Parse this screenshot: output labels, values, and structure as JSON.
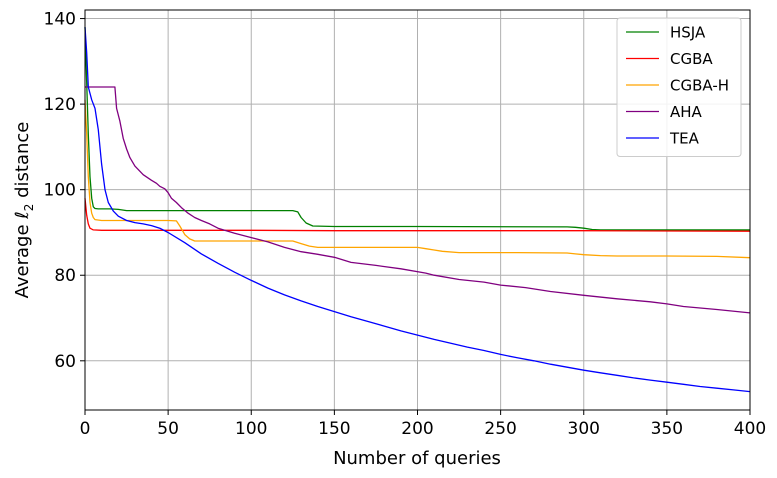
{
  "chart_data": {
    "type": "line",
    "title": "",
    "xlabel": "Number of queries",
    "ylabel_prefix": "Average ",
    "ylabel_symbol": "ℓ",
    "ylabel_subscript": "2",
    "ylabel_suffix": " distance",
    "xlim": [
      0,
      400
    ],
    "ylim": [
      48.5,
      142
    ],
    "xticks": [
      "0",
      "50",
      "100",
      "150",
      "200",
      "250",
      "300",
      "350",
      "400"
    ],
    "yticks": [
      "60",
      "80",
      "100",
      "120",
      "140"
    ],
    "grid": true,
    "legend_position": "top-right",
    "series": [
      {
        "name": "HSJA",
        "color": "#008000",
        "points": [
          [
            0,
            138
          ],
          [
            1,
            125
          ],
          [
            2,
            113
          ],
          [
            3,
            103
          ],
          [
            4,
            98
          ],
          [
            5,
            96
          ],
          [
            6,
            95.6
          ],
          [
            8,
            95.5
          ],
          [
            15,
            95.5
          ],
          [
            20,
            95.4
          ],
          [
            25,
            95.1
          ],
          [
            60,
            95.1
          ],
          [
            100,
            95.1
          ],
          [
            125,
            95.1
          ],
          [
            128,
            94.8
          ],
          [
            130,
            93.5
          ],
          [
            133,
            92.2
          ],
          [
            137,
            91.5
          ],
          [
            150,
            91.4
          ],
          [
            200,
            91.4
          ],
          [
            290,
            91.3
          ],
          [
            295,
            91.2
          ],
          [
            300,
            91.0
          ],
          [
            305,
            90.7
          ],
          [
            310,
            90.6
          ],
          [
            350,
            90.6
          ],
          [
            400,
            90.6
          ]
        ]
      },
      {
        "name": "CGBA",
        "color": "#ff0000",
        "points": [
          [
            0,
            98
          ],
          [
            1,
            94
          ],
          [
            2,
            92
          ],
          [
            3,
            91
          ],
          [
            5,
            90.6
          ],
          [
            10,
            90.5
          ],
          [
            50,
            90.5
          ],
          [
            100,
            90.5
          ],
          [
            150,
            90.4
          ],
          [
            200,
            90.4
          ],
          [
            300,
            90.4
          ],
          [
            400,
            90.3
          ]
        ]
      },
      {
        "name": "CGBA-H",
        "color": "#ffa500",
        "points": [
          [
            0,
            121
          ],
          [
            1,
            113
          ],
          [
            2,
            103
          ],
          [
            3,
            97
          ],
          [
            4,
            94.5
          ],
          [
            5,
            93.5
          ],
          [
            6,
            93.0
          ],
          [
            10,
            92.8
          ],
          [
            20,
            92.8
          ],
          [
            50,
            92.8
          ],
          [
            55,
            92.7
          ],
          [
            57,
            91.5
          ],
          [
            60,
            89.5
          ],
          [
            63,
            88.5
          ],
          [
            66,
            88.0
          ],
          [
            80,
            88.0
          ],
          [
            110,
            88.0
          ],
          [
            125,
            88.0
          ],
          [
            130,
            87.4
          ],
          [
            135,
            86.8
          ],
          [
            140,
            86.5
          ],
          [
            170,
            86.5
          ],
          [
            200,
            86.5
          ],
          [
            205,
            86.2
          ],
          [
            210,
            85.9
          ],
          [
            215,
            85.6
          ],
          [
            225,
            85.3
          ],
          [
            260,
            85.3
          ],
          [
            290,
            85.2
          ],
          [
            295,
            85.0
          ],
          [
            300,
            84.8
          ],
          [
            310,
            84.6
          ],
          [
            320,
            84.5
          ],
          [
            350,
            84.5
          ],
          [
            380,
            84.4
          ],
          [
            400,
            84.1
          ]
        ]
      },
      {
        "name": "AHA",
        "color": "#800080",
        "points": [
          [
            0,
            124
          ],
          [
            10,
            124
          ],
          [
            18,
            124
          ],
          [
            19,
            119
          ],
          [
            21,
            116
          ],
          [
            23,
            112
          ],
          [
            25,
            109.5
          ],
          [
            27,
            107.5
          ],
          [
            30,
            105.5
          ],
          [
            35,
            103.5
          ],
          [
            40,
            102.2
          ],
          [
            43,
            101.5
          ],
          [
            45,
            100.8
          ],
          [
            48,
            100.2
          ],
          [
            50,
            99.3
          ],
          [
            52,
            98
          ],
          [
            55,
            97
          ],
          [
            58,
            95.8
          ],
          [
            62,
            94.5
          ],
          [
            66,
            93.5
          ],
          [
            70,
            92.8
          ],
          [
            75,
            92
          ],
          [
            80,
            91
          ],
          [
            90,
            89.8
          ],
          [
            100,
            88.8
          ],
          [
            110,
            87.8
          ],
          [
            120,
            86.5
          ],
          [
            130,
            85.5
          ],
          [
            140,
            84.9
          ],
          [
            150,
            84.2
          ],
          [
            160,
            83.0
          ],
          [
            175,
            82.3
          ],
          [
            190,
            81.5
          ],
          [
            205,
            80.5
          ],
          [
            210,
            80.0
          ],
          [
            225,
            79.0
          ],
          [
            240,
            78.4
          ],
          [
            250,
            77.7
          ],
          [
            265,
            77.1
          ],
          [
            280,
            76.2
          ],
          [
            300,
            75.3
          ],
          [
            320,
            74.5
          ],
          [
            340,
            73.8
          ],
          [
            350,
            73.3
          ],
          [
            360,
            72.7
          ],
          [
            380,
            72.0
          ],
          [
            400,
            71.2
          ]
        ]
      },
      {
        "name": "TEA",
        "color": "#0000ff",
        "points": [
          [
            0,
            138
          ],
          [
            1,
            132
          ],
          [
            2,
            124
          ],
          [
            4,
            121
          ],
          [
            6,
            119
          ],
          [
            8,
            114
          ],
          [
            10,
            106
          ],
          [
            12,
            100
          ],
          [
            14,
            97
          ],
          [
            17,
            95
          ],
          [
            20,
            93.8
          ],
          [
            25,
            92.8
          ],
          [
            30,
            92.3
          ],
          [
            35,
            92.0
          ],
          [
            40,
            91.6
          ],
          [
            45,
            91.0
          ],
          [
            50,
            90.0
          ],
          [
            60,
            87.6
          ],
          [
            70,
            85.0
          ],
          [
            80,
            82.8
          ],
          [
            90,
            80.7
          ],
          [
            100,
            78.8
          ],
          [
            110,
            77.0
          ],
          [
            120,
            75.4
          ],
          [
            130,
            74.0
          ],
          [
            140,
            72.7
          ],
          [
            150,
            71.5
          ],
          [
            160,
            70.3
          ],
          [
            170,
            69.2
          ],
          [
            180,
            68.1
          ],
          [
            190,
            67.0
          ],
          [
            200,
            66.0
          ],
          [
            210,
            65.0
          ],
          [
            220,
            64.1
          ],
          [
            230,
            63.2
          ],
          [
            240,
            62.4
          ],
          [
            250,
            61.5
          ],
          [
            260,
            60.7
          ],
          [
            270,
            60.0
          ],
          [
            280,
            59.2
          ],
          [
            290,
            58.5
          ],
          [
            300,
            57.8
          ],
          [
            310,
            57.2
          ],
          [
            320,
            56.6
          ],
          [
            330,
            56.0
          ],
          [
            340,
            55.5
          ],
          [
            350,
            55.0
          ],
          [
            360,
            54.5
          ],
          [
            370,
            54.0
          ],
          [
            380,
            53.6
          ],
          [
            390,
            53.2
          ],
          [
            400,
            52.8
          ]
        ]
      }
    ]
  }
}
